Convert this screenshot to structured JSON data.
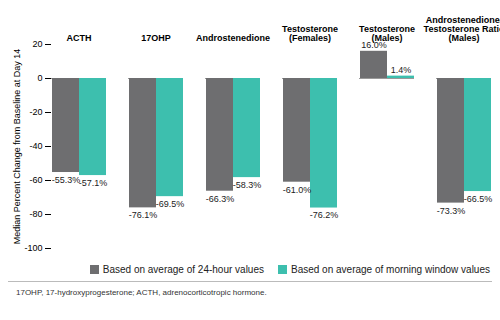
{
  "chart_data": {
    "type": "bar",
    "categories": [
      "ACTH",
      "17OHP",
      "Androstenedione",
      "Testosterone\n(Females)",
      "Testosterone\n(Males)",
      "Androstenedione/\nTestosterone Ratio\n(Males)"
    ],
    "series": [
      {
        "name": "Based on average of 24-hour values",
        "color": "#6e6e70",
        "values": [
          -55.3,
          -76.1,
          -66.3,
          -61.0,
          16.0,
          -73.3
        ],
        "value_labels": [
          "-55.3%",
          "-76.1%",
          "-66.3%",
          "-61.0%",
          "16.0%",
          "-73.3%"
        ]
      },
      {
        "name": "Based on average of morning window values",
        "color": "#3dbfae",
        "values": [
          -57.1,
          -69.5,
          -58.3,
          -76.2,
          1.4,
          -66.5
        ],
        "value_labels": [
          "-57.1%",
          "-69.5%",
          "-58.3%",
          "-76.2%",
          "1.4%",
          "-66.5%"
        ]
      }
    ],
    "y_label": "Median Percent Change from Baseline at Day 14",
    "ylim": [
      -100,
      20
    ],
    "yticks": [
      -100,
      -80,
      -60,
      -40,
      -20,
      0,
      20
    ],
    "data_labels": true,
    "legend": "bottom",
    "caption": "17OHP, 17-hydroxyprogesterone; ACTH, adrenocorticotropic hormone."
  }
}
